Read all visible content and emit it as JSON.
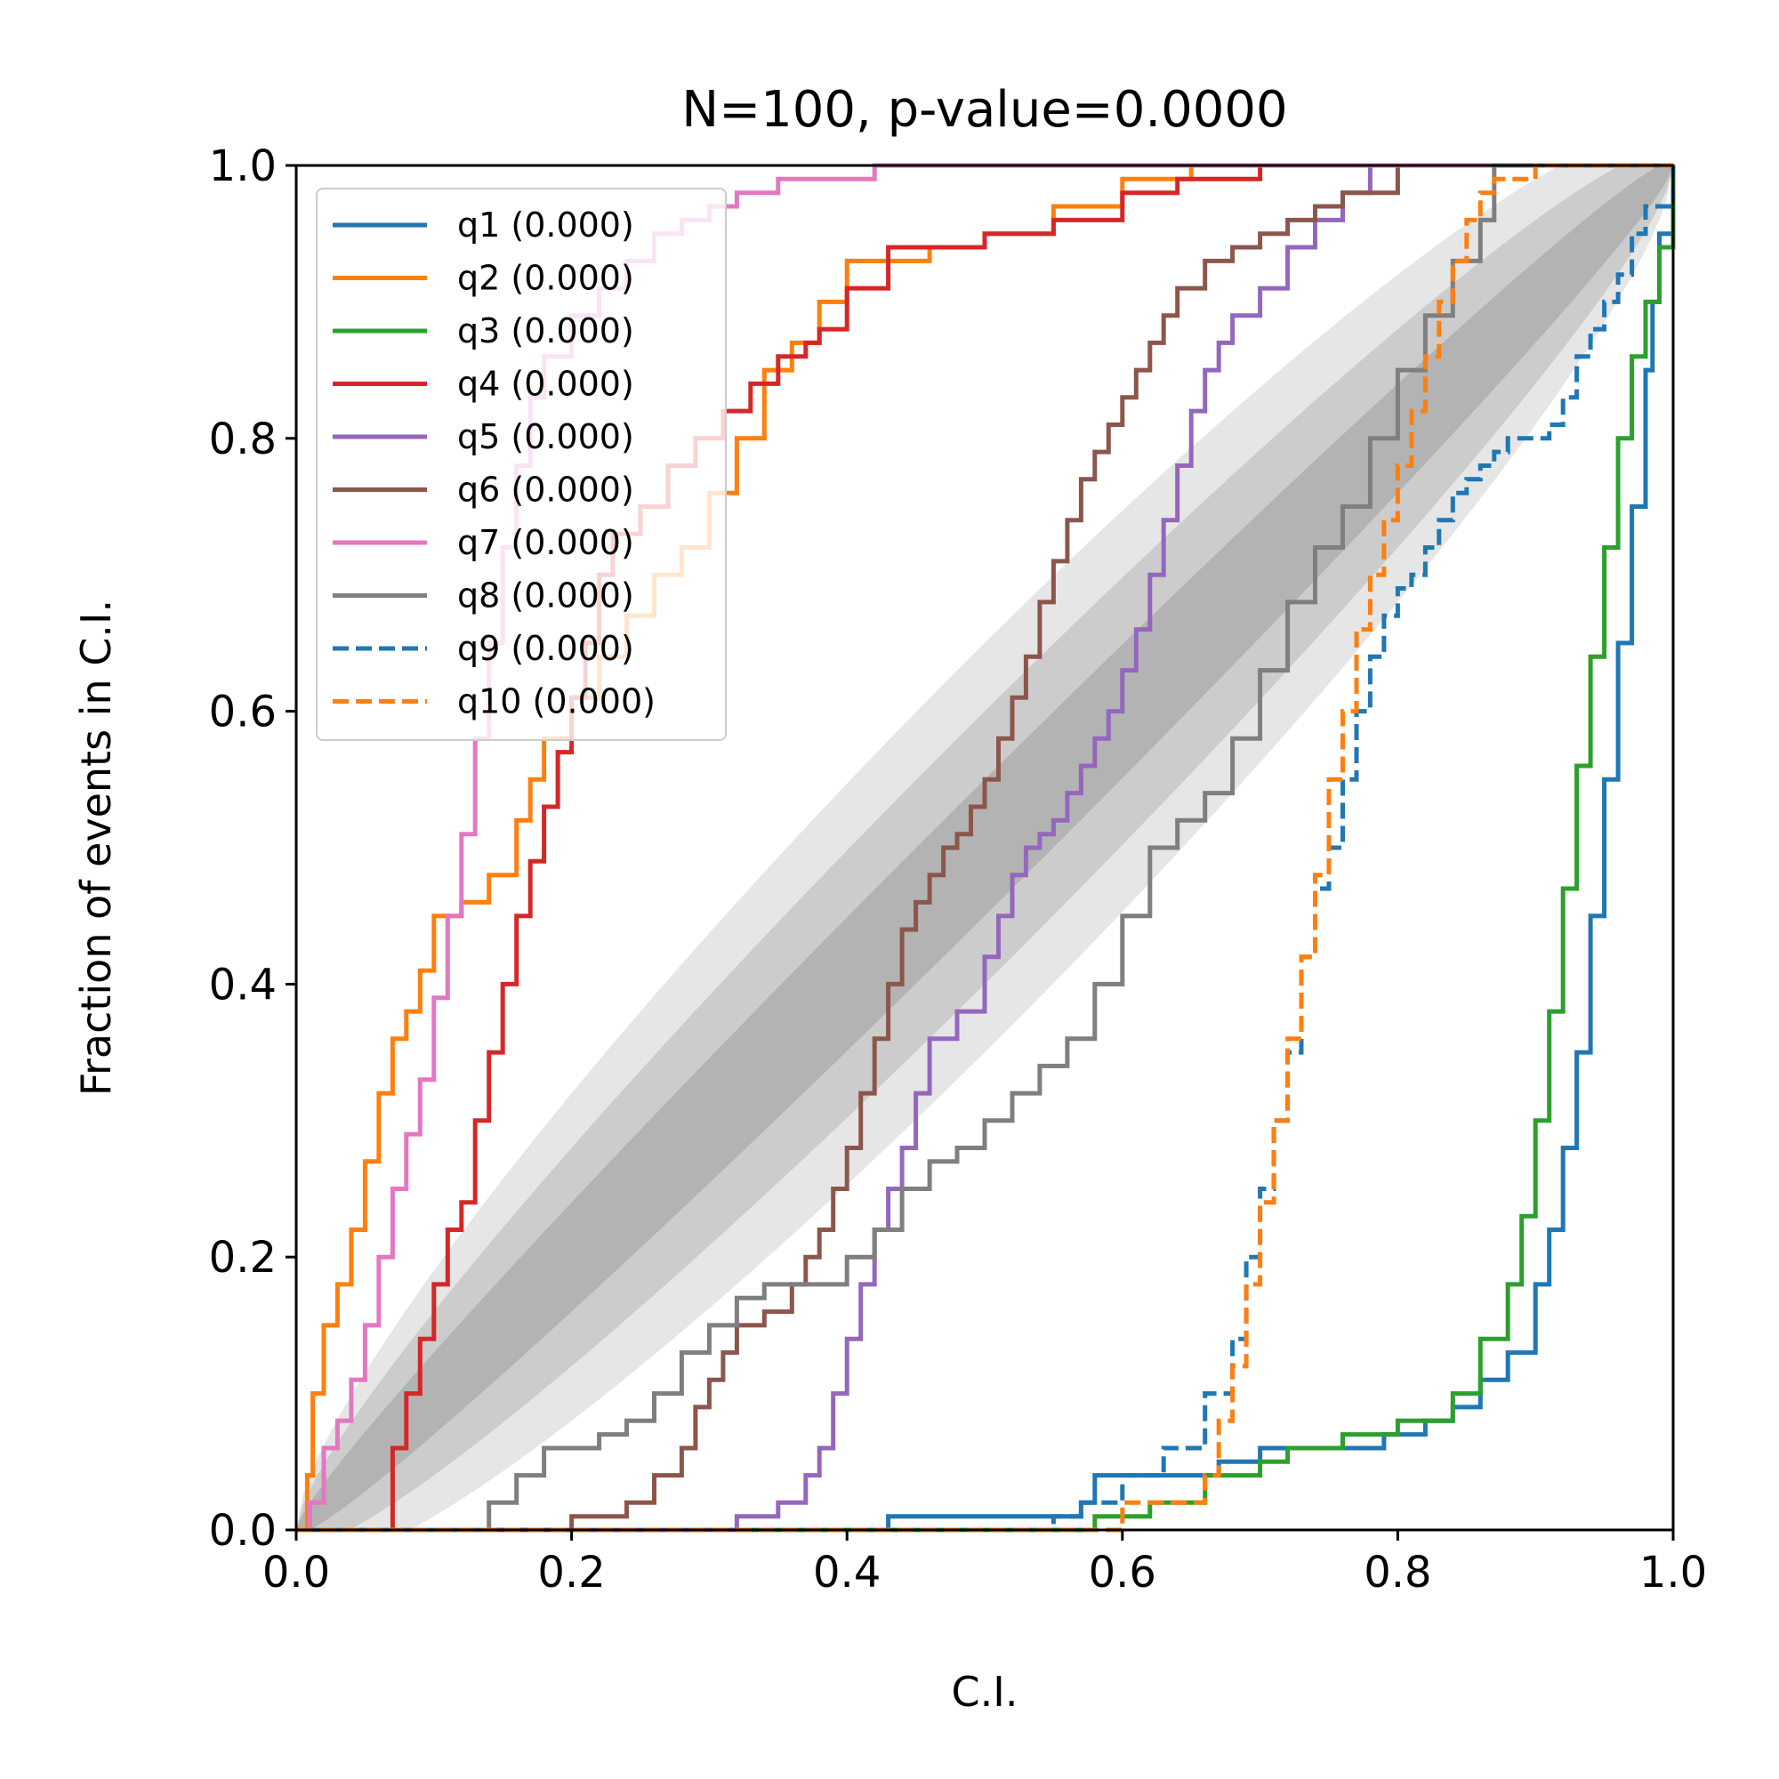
{
  "chart_data": {
    "type": "line",
    "title": "N=100, p-value=0.0000",
    "xlabel": "C.I.",
    "ylabel": "Fraction of events in C.I.",
    "xlim": [
      0.0,
      1.0
    ],
    "ylim": [
      0.0,
      1.0
    ],
    "xticks": [
      "0.0",
      "0.2",
      "0.4",
      "0.6",
      "0.8",
      "1.0"
    ],
    "yticks": [
      "0.0",
      "0.2",
      "0.4",
      "0.6",
      "0.8",
      "1.0"
    ],
    "grid": false,
    "legend": "top-left",
    "bands": [
      {
        "level": "outer",
        "color": "#e6e6e6"
      },
      {
        "level": "middle",
        "color": "#cccccc"
      },
      {
        "level": "inner",
        "color": "#b3b3b3"
      }
    ],
    "series": [
      {
        "name": "q1 (0.000)",
        "color": "#1f77b4",
        "dash": false,
        "x": [
          0.0,
          0.42,
          0.43,
          0.57,
          0.58,
          0.62,
          0.67,
          0.7,
          0.72,
          0.79,
          0.82,
          0.84,
          0.86,
          0.88,
          0.9,
          0.91,
          0.92,
          0.93,
          0.94,
          0.95,
          0.96,
          0.97,
          0.98,
          0.985,
          0.99,
          1.0
        ],
        "y": [
          0.0,
          0.0,
          0.01,
          0.02,
          0.04,
          0.04,
          0.05,
          0.06,
          0.06,
          0.07,
          0.08,
          0.09,
          0.11,
          0.13,
          0.18,
          0.22,
          0.28,
          0.35,
          0.45,
          0.55,
          0.65,
          0.75,
          0.85,
          0.9,
          0.95,
          1.0
        ]
      },
      {
        "name": "q2 (0.000)",
        "color": "#ff7f0e",
        "dash": false,
        "x": [
          0.0,
          0.008,
          0.012,
          0.02,
          0.03,
          0.04,
          0.05,
          0.06,
          0.07,
          0.08,
          0.09,
          0.1,
          0.12,
          0.14,
          0.16,
          0.17,
          0.18,
          0.2,
          0.22,
          0.24,
          0.26,
          0.28,
          0.3,
          0.32,
          0.34,
          0.36,
          0.38,
          0.4,
          0.42,
          0.46,
          0.5,
          0.55,
          0.6,
          0.65,
          1.0
        ],
        "y": [
          0.0,
          0.04,
          0.1,
          0.15,
          0.18,
          0.22,
          0.27,
          0.32,
          0.36,
          0.38,
          0.41,
          0.45,
          0.46,
          0.48,
          0.52,
          0.55,
          0.58,
          0.61,
          0.64,
          0.67,
          0.7,
          0.72,
          0.76,
          0.8,
          0.85,
          0.87,
          0.9,
          0.93,
          0.93,
          0.94,
          0.95,
          0.97,
          0.99,
          1.0,
          1.0
        ]
      },
      {
        "name": "q3 (0.000)",
        "color": "#2ca02c",
        "dash": false,
        "x": [
          0.0,
          0.555,
          0.58,
          0.62,
          0.66,
          0.7,
          0.72,
          0.76,
          0.8,
          0.84,
          0.86,
          0.88,
          0.89,
          0.9,
          0.91,
          0.92,
          0.93,
          0.94,
          0.95,
          0.96,
          0.97,
          0.98,
          0.99,
          1.0
        ],
        "y": [
          0.0,
          0.0,
          0.01,
          0.02,
          0.04,
          0.05,
          0.06,
          0.07,
          0.08,
          0.1,
          0.14,
          0.18,
          0.23,
          0.3,
          0.38,
          0.47,
          0.56,
          0.64,
          0.72,
          0.8,
          0.86,
          0.9,
          0.94,
          1.0
        ]
      },
      {
        "name": "q4 (0.000)",
        "color": "#d62728",
        "dash": false,
        "x": [
          0.0,
          0.06,
          0.07,
          0.08,
          0.09,
          0.1,
          0.11,
          0.12,
          0.13,
          0.14,
          0.15,
          0.16,
          0.17,
          0.18,
          0.19,
          0.2,
          0.21,
          0.22,
          0.23,
          0.25,
          0.27,
          0.29,
          0.31,
          0.33,
          0.35,
          0.37,
          0.38,
          0.4,
          0.43,
          0.46,
          0.5,
          0.55,
          0.6,
          0.64,
          0.7,
          1.0
        ],
        "y": [
          0.0,
          0.0,
          0.06,
          0.1,
          0.14,
          0.18,
          0.22,
          0.24,
          0.3,
          0.35,
          0.4,
          0.45,
          0.49,
          0.53,
          0.57,
          0.61,
          0.65,
          0.7,
          0.73,
          0.75,
          0.78,
          0.8,
          0.82,
          0.84,
          0.86,
          0.87,
          0.88,
          0.91,
          0.94,
          0.94,
          0.95,
          0.96,
          0.98,
          0.99,
          1.0,
          1.0
        ]
      },
      {
        "name": "q5 (0.000)",
        "color": "#9467bd",
        "dash": false,
        "x": [
          0.0,
          0.29,
          0.32,
          0.35,
          0.37,
          0.38,
          0.39,
          0.4,
          0.41,
          0.42,
          0.43,
          0.44,
          0.45,
          0.46,
          0.48,
          0.5,
          0.51,
          0.52,
          0.53,
          0.54,
          0.55,
          0.56,
          0.57,
          0.58,
          0.59,
          0.6,
          0.61,
          0.62,
          0.63,
          0.64,
          0.65,
          0.66,
          0.67,
          0.68,
          0.7,
          0.72,
          0.74,
          0.76,
          0.78,
          1.0
        ],
        "y": [
          0.0,
          0.0,
          0.01,
          0.02,
          0.04,
          0.06,
          0.1,
          0.14,
          0.18,
          0.22,
          0.25,
          0.28,
          0.32,
          0.36,
          0.38,
          0.42,
          0.45,
          0.48,
          0.5,
          0.51,
          0.52,
          0.54,
          0.56,
          0.58,
          0.6,
          0.63,
          0.66,
          0.7,
          0.74,
          0.78,
          0.82,
          0.85,
          0.87,
          0.89,
          0.91,
          0.94,
          0.96,
          0.98,
          1.0,
          1.0
        ]
      },
      {
        "name": "q6 (0.000)",
        "color": "#8c564b",
        "dash": false,
        "x": [
          0.0,
          0.18,
          0.2,
          0.24,
          0.26,
          0.28,
          0.29,
          0.3,
          0.31,
          0.32,
          0.34,
          0.36,
          0.37,
          0.38,
          0.39,
          0.4,
          0.41,
          0.42,
          0.43,
          0.44,
          0.45,
          0.46,
          0.47,
          0.48,
          0.49,
          0.5,
          0.51,
          0.52,
          0.53,
          0.54,
          0.55,
          0.56,
          0.57,
          0.58,
          0.59,
          0.6,
          0.61,
          0.62,
          0.63,
          0.64,
          0.66,
          0.68,
          0.7,
          0.72,
          0.74,
          0.76,
          0.8,
          1.0
        ],
        "y": [
          0.0,
          0.0,
          0.01,
          0.02,
          0.04,
          0.06,
          0.09,
          0.11,
          0.13,
          0.15,
          0.16,
          0.18,
          0.2,
          0.22,
          0.25,
          0.28,
          0.32,
          0.36,
          0.4,
          0.44,
          0.46,
          0.48,
          0.5,
          0.51,
          0.53,
          0.55,
          0.58,
          0.61,
          0.64,
          0.68,
          0.71,
          0.74,
          0.77,
          0.79,
          0.81,
          0.83,
          0.85,
          0.87,
          0.89,
          0.91,
          0.93,
          0.94,
          0.95,
          0.96,
          0.97,
          0.98,
          1.0,
          1.0
        ]
      },
      {
        "name": "q7 (0.000)",
        "color": "#e377c2",
        "dash": false,
        "x": [
          0.0,
          0.01,
          0.02,
          0.03,
          0.04,
          0.05,
          0.06,
          0.07,
          0.08,
          0.09,
          0.1,
          0.11,
          0.12,
          0.13,
          0.14,
          0.15,
          0.16,
          0.17,
          0.18,
          0.2,
          0.22,
          0.24,
          0.26,
          0.28,
          0.3,
          0.32,
          0.35,
          0.38,
          0.42,
          0.46,
          0.5,
          1.0
        ],
        "y": [
          0.0,
          0.02,
          0.06,
          0.08,
          0.11,
          0.15,
          0.2,
          0.25,
          0.29,
          0.33,
          0.39,
          0.45,
          0.51,
          0.58,
          0.65,
          0.72,
          0.78,
          0.83,
          0.86,
          0.89,
          0.91,
          0.93,
          0.95,
          0.96,
          0.97,
          0.98,
          0.99,
          0.99,
          1.0,
          1.0,
          1.0,
          1.0
        ]
      },
      {
        "name": "q8 (0.000)",
        "color": "#7f7f7f",
        "dash": false,
        "x": [
          0.0,
          0.12,
          0.14,
          0.16,
          0.18,
          0.2,
          0.22,
          0.24,
          0.26,
          0.28,
          0.3,
          0.32,
          0.34,
          0.36,
          0.38,
          0.4,
          0.42,
          0.44,
          0.46,
          0.48,
          0.5,
          0.52,
          0.54,
          0.56,
          0.58,
          0.6,
          0.62,
          0.64,
          0.66,
          0.68,
          0.7,
          0.72,
          0.74,
          0.76,
          0.78,
          0.8,
          0.82,
          0.84,
          0.86,
          0.87,
          1.0
        ],
        "y": [
          0.0,
          0.0,
          0.02,
          0.04,
          0.06,
          0.06,
          0.07,
          0.08,
          0.1,
          0.13,
          0.15,
          0.17,
          0.18,
          0.18,
          0.18,
          0.2,
          0.22,
          0.25,
          0.27,
          0.28,
          0.3,
          0.32,
          0.34,
          0.36,
          0.4,
          0.45,
          0.5,
          0.52,
          0.54,
          0.58,
          0.63,
          0.68,
          0.72,
          0.75,
          0.8,
          0.85,
          0.89,
          0.93,
          0.96,
          1.0,
          1.0
        ]
      },
      {
        "name": "q9 (0.000)",
        "color": "#1f77b4",
        "dash": true,
        "x": [
          0.0,
          0.53,
          0.55,
          0.57,
          0.6,
          0.63,
          0.66,
          0.68,
          0.69,
          0.7,
          0.71,
          0.72,
          0.73,
          0.74,
          0.75,
          0.76,
          0.77,
          0.78,
          0.79,
          0.8,
          0.81,
          0.82,
          0.83,
          0.84,
          0.85,
          0.86,
          0.87,
          0.88,
          0.9,
          0.91,
          0.92,
          0.93,
          0.94,
          0.95,
          0.96,
          0.97,
          0.98,
          1.0
        ],
        "y": [
          0.0,
          0.0,
          0.01,
          0.02,
          0.04,
          0.06,
          0.1,
          0.14,
          0.2,
          0.25,
          0.3,
          0.35,
          0.42,
          0.47,
          0.5,
          0.55,
          0.6,
          0.64,
          0.67,
          0.69,
          0.7,
          0.72,
          0.74,
          0.76,
          0.77,
          0.78,
          0.79,
          0.8,
          0.8,
          0.81,
          0.83,
          0.86,
          0.88,
          0.9,
          0.92,
          0.95,
          0.97,
          1.0
        ]
      },
      {
        "name": "q10 (0.000)",
        "color": "#ff7f0e",
        "dash": true,
        "x": [
          0.0,
          0.5,
          0.6,
          0.66,
          0.67,
          0.68,
          0.69,
          0.7,
          0.71,
          0.72,
          0.73,
          0.74,
          0.75,
          0.76,
          0.77,
          0.78,
          0.79,
          0.8,
          0.81,
          0.82,
          0.83,
          0.84,
          0.85,
          0.86,
          0.87,
          0.9,
          1.0
        ],
        "y": [
          0.0,
          0.0,
          0.02,
          0.04,
          0.08,
          0.12,
          0.18,
          0.24,
          0.3,
          0.36,
          0.42,
          0.48,
          0.55,
          0.6,
          0.66,
          0.7,
          0.74,
          0.78,
          0.82,
          0.86,
          0.9,
          0.93,
          0.96,
          0.98,
          0.99,
          1.0,
          1.0
        ]
      }
    ]
  }
}
